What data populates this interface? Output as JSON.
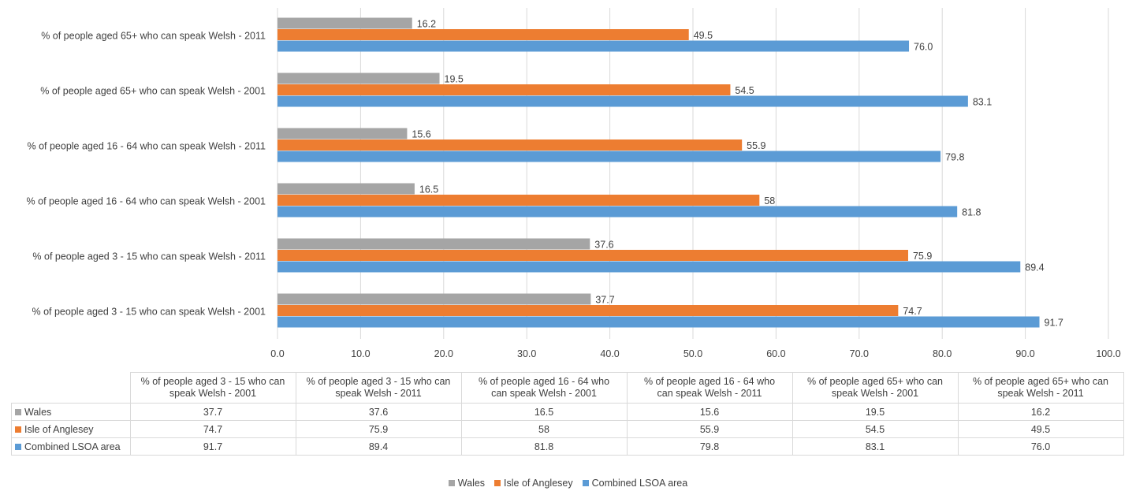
{
  "colors": {
    "wales": "#a5a5a5",
    "anglesey": "#ed7d31",
    "combined": "#5b9bd5",
    "grid": "#d9d9d9",
    "text": "#404040"
  },
  "chart_data": {
    "type": "bar",
    "orientation": "horizontal",
    "title": "",
    "xlabel": "",
    "ylabel": "",
    "xlim": [
      0,
      100
    ],
    "x_ticks": [
      "0.0",
      "10.0",
      "20.0",
      "30.0",
      "40.0",
      "50.0",
      "60.0",
      "70.0",
      "80.0",
      "90.0",
      "100.0"
    ],
    "grid": "vertical gridlines",
    "legend": "bottom",
    "categories": [
      "% of people aged 3 - 15 who can speak Welsh - 2001",
      "% of people aged 3 - 15 who can speak Welsh - 2011",
      "% of people aged 16 - 64 who can speak Welsh - 2001",
      "% of people aged 16 - 64 who can speak Welsh - 2011",
      "% of people aged 65+ who can speak Welsh - 2001",
      "% of people aged 65+ who can speak Welsh - 2011"
    ],
    "series": [
      {
        "name": "Wales",
        "values": [
          37.7,
          37.6,
          16.5,
          15.6,
          19.5,
          16.2
        ],
        "labels": [
          "37.7",
          "37.6",
          "16.5",
          "15.6",
          "19.5",
          "16.2"
        ]
      },
      {
        "name": "Isle of Anglesey",
        "values": [
          74.7,
          75.9,
          58,
          55.9,
          54.5,
          49.5
        ],
        "labels": [
          "74.7",
          "75.9",
          "58",
          "55.9",
          "54.5",
          "49.5"
        ]
      },
      {
        "name": "Combined LSOA area",
        "values": [
          91.7,
          89.4,
          81.8,
          79.8,
          83.1,
          76.0
        ],
        "labels": [
          "91.7",
          "89.4",
          "81.8",
          "79.8",
          "83.1",
          "76.0"
        ]
      }
    ],
    "data_table": {
      "headers": [
        [
          "% of people aged 3 - 15 who can",
          "speak Welsh - 2001"
        ],
        [
          "% of people aged 3 - 15 who can",
          "speak Welsh - 2011"
        ],
        [
          "% of people aged 16 - 64 who",
          "can speak Welsh - 2001"
        ],
        [
          "% of people aged 16 - 64 who",
          "can speak Welsh - 2011"
        ],
        [
          "% of people aged 65+ who can",
          "speak Welsh - 2001"
        ],
        [
          "% of people aged 65+ who can",
          "speak Welsh - 2011"
        ]
      ]
    }
  }
}
